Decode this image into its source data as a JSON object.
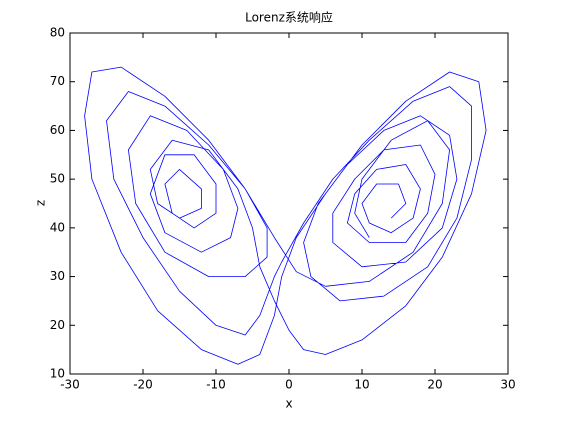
{
  "chart_data": {
    "type": "line",
    "title": "Lorenz系统响应",
    "x_label": "x",
    "y_label": "z",
    "color": "#0000ff",
    "grid": false,
    "xlim": [
      -30,
      30
    ],
    "xticks": [
      -30,
      -20,
      -10,
      0,
      10,
      20,
      30
    ],
    "ylim": [
      10,
      80
    ],
    "yticks": [
      10,
      20,
      30,
      40,
      50,
      60,
      70,
      80
    ],
    "x": [
      14,
      16,
      15,
      12,
      10,
      11,
      14,
      17,
      18,
      16,
      12,
      9,
      8,
      11,
      16,
      19,
      20,
      18,
      13,
      9,
      6,
      6,
      10,
      16,
      21,
      23,
      22,
      18,
      13,
      8,
      4,
      2,
      3,
      7,
      13,
      19,
      23,
      25,
      25,
      22,
      17,
      11,
      6,
      2,
      -1,
      -2,
      -4,
      -6,
      -10,
      -15,
      -20,
      -24,
      -25,
      -22,
      -17,
      -11,
      -6,
      -3,
      -3,
      -6,
      -11,
      -17,
      -21,
      -22,
      -19,
      -14,
      -9,
      -7,
      -8,
      -12,
      -17,
      -19,
      -17,
      -13,
      -10,
      -10,
      -13,
      -16,
      -17,
      -15,
      -12,
      -12,
      -15,
      -18,
      -19,
      -16,
      -11,
      -7,
      -5,
      -4,
      -2,
      0,
      2,
      5,
      10,
      16,
      21,
      25,
      27,
      26,
      22,
      16,
      10,
      5,
      1,
      -1,
      -2,
      -4,
      -7,
      -12,
      -18,
      -23,
      -27,
      -28,
      -27,
      -23,
      -17,
      -11,
      -6,
      -2,
      1,
      5,
      11,
      17,
      21,
      22,
      19,
      14,
      10,
      9,
      11
    ],
    "values": [
      42,
      45,
      49,
      49,
      45,
      41,
      39,
      42,
      48,
      53,
      52,
      47,
      41,
      37,
      37,
      43,
      51,
      57,
      56,
      50,
      43,
      37,
      32,
      33,
      40,
      50,
      59,
      63,
      60,
      53,
      45,
      37,
      30,
      25,
      26,
      32,
      42,
      54,
      65,
      69,
      66,
      58,
      50,
      41,
      33,
      30,
      22,
      18,
      20,
      27,
      38,
      50,
      62,
      68,
      65,
      57,
      48,
      40,
      34,
      30,
      30,
      35,
      45,
      56,
      63,
      60,
      52,
      44,
      38,
      35,
      39,
      47,
      55,
      55,
      49,
      43,
      40,
      43,
      49,
      52,
      48,
      44,
      42,
      45,
      52,
      58,
      56,
      48,
      40,
      32,
      25,
      19,
      15,
      14,
      17,
      24,
      34,
      47,
      60,
      70,
      72,
      66,
      57,
      47,
      38,
      30,
      22,
      14,
      12,
      15,
      23,
      35,
      50,
      63,
      72,
      73,
      67,
      58,
      48,
      38,
      31,
      28,
      29,
      35,
      45,
      56,
      62,
      58,
      50,
      43,
      38
    ]
  }
}
